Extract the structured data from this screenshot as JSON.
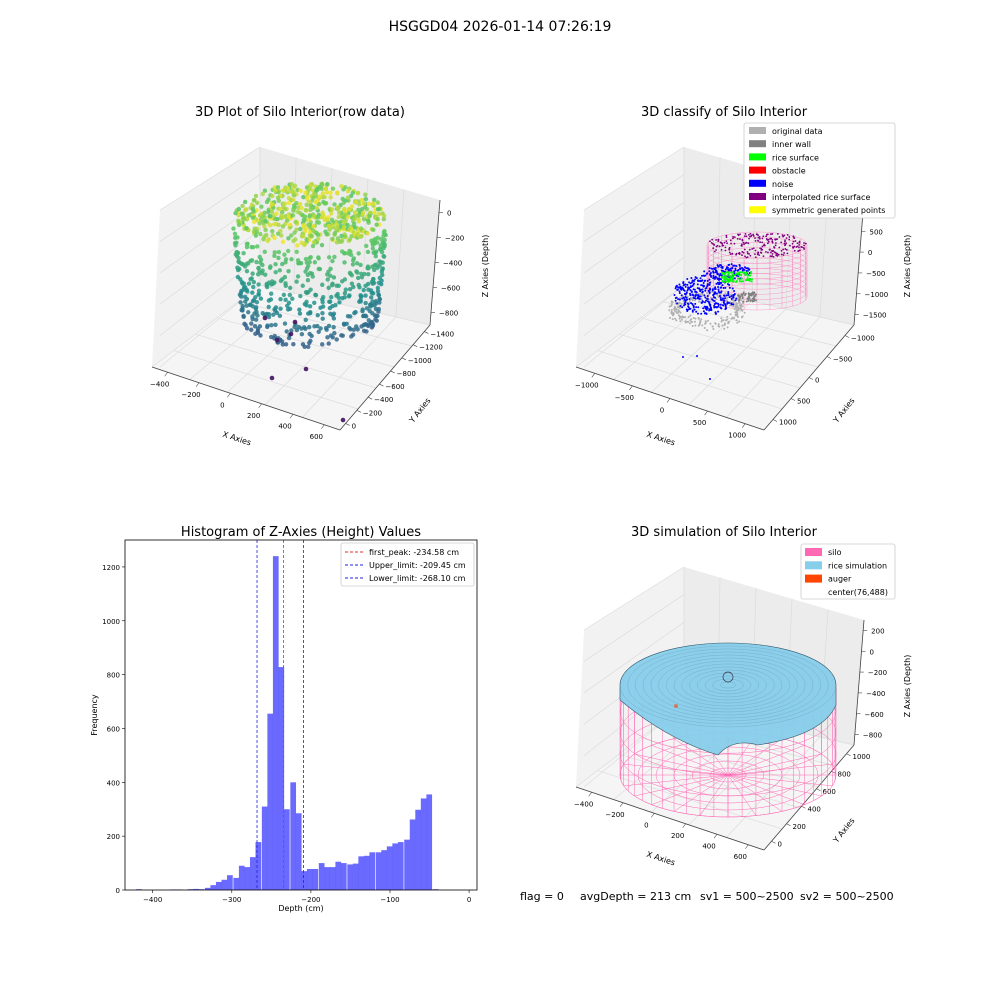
{
  "suptitle": "HSGGD04 2026-01-14 07:26:19",
  "colors": {
    "hist_bar": "#5050ff",
    "peak_line": "#e03030",
    "limit_line": "#2020dd",
    "silo": "#ff69b4",
    "rice_sim": "#87ceeb",
    "auger": "#ff4500",
    "original": "#b0b0b0",
    "inner_wall": "#808080",
    "rice_surface": "#00ff00",
    "obstacle": "#ff0000",
    "noise": "#0000ff",
    "interp": "#800080",
    "symmetric": "#ffff00"
  },
  "chart_data": [
    {
      "type": "scatter",
      "projection": "3d",
      "title": "3D Plot of Silo Interior(row data)",
      "xlabel": "X Axies",
      "ylabel": "Y Axies",
      "zlabel": "Z Axies (Depth)",
      "xticks": [
        "−400",
        "−200",
        "0",
        "200",
        "400",
        "600"
      ],
      "yticks": [
        "0",
        "−200",
        "−400",
        "−600",
        "−800",
        "−1000",
        "−1200",
        "−1400"
      ],
      "zticks": [
        "0",
        "−200",
        "−400",
        "−600",
        "−800"
      ],
      "xlim": [
        -500,
        650
      ],
      "ylim": [
        -1500,
        100
      ],
      "zlim": [
        -950,
        50
      ],
      "colormap": "viridis",
      "grid": true
    },
    {
      "type": "scatter",
      "projection": "3d",
      "title": "3D classify of Silo Interior",
      "xlabel": "X Axies",
      "ylabel": "Y Axies",
      "zlabel": "Z Axies (Depth)",
      "xticks": [
        "−1000",
        "−500",
        "0",
        "500",
        "1000"
      ],
      "yticks": [
        "1000",
        "500",
        "0",
        "−500",
        "−1000"
      ],
      "zticks": [
        "1000",
        "500",
        "0",
        "−500",
        "−1000",
        "−1500"
      ],
      "legend_position": "top-right",
      "legend": [
        {
          "label": "original data",
          "color": "#b0b0b0"
        },
        {
          "label": "inner wall",
          "color": "#808080"
        },
        {
          "label": "rice surface",
          "color": "#00ff00"
        },
        {
          "label": "obstacle",
          "color": "#ff0000"
        },
        {
          "label": "noise",
          "color": "#0000ff"
        },
        {
          "label": "interpolated rice surface",
          "color": "#800080"
        },
        {
          "label": "symmetric generated points",
          "color": "#ffff00"
        }
      ],
      "grid": true
    },
    {
      "type": "bar",
      "title": "Histogram of Z-Axies (Height) Values",
      "xlabel": "Depth (cm)",
      "ylabel": "Frequency",
      "xlim": [
        -435,
        10
      ],
      "ylim": [
        0,
        1300
      ],
      "xticks": [
        -400,
        -300,
        -200,
        -100,
        0
      ],
      "yticks": [
        0,
        200,
        400,
        600,
        800,
        1000,
        1200
      ],
      "bin_width": 7.2,
      "bins": [
        {
          "x": -421,
          "count": 3
        },
        {
          "x": -414,
          "count": 0
        },
        {
          "x": -406,
          "count": 0
        },
        {
          "x": -399,
          "count": 0
        },
        {
          "x": -392,
          "count": 0
        },
        {
          "x": -385,
          "count": 0
        },
        {
          "x": -378,
          "count": 2
        },
        {
          "x": -370,
          "count": 2
        },
        {
          "x": -363,
          "count": 0
        },
        {
          "x": -356,
          "count": 3
        },
        {
          "x": -349,
          "count": 4
        },
        {
          "x": -342,
          "count": 3
        },
        {
          "x": -334,
          "count": 8
        },
        {
          "x": -327,
          "count": 18
        },
        {
          "x": -320,
          "count": 30
        },
        {
          "x": -313,
          "count": 38
        },
        {
          "x": -306,
          "count": 55
        },
        {
          "x": -298,
          "count": 45
        },
        {
          "x": -291,
          "count": 90
        },
        {
          "x": -284,
          "count": 85
        },
        {
          "x": -277,
          "count": 122
        },
        {
          "x": -270,
          "count": 178
        },
        {
          "x": -262,
          "count": 310
        },
        {
          "x": -255,
          "count": 655
        },
        {
          "x": -248,
          "count": 1240
        },
        {
          "x": -241,
          "count": 828
        },
        {
          "x": -234,
          "count": 300
        },
        {
          "x": -226,
          "count": 400
        },
        {
          "x": -219,
          "count": 285
        },
        {
          "x": -212,
          "count": 70
        },
        {
          "x": -205,
          "count": 78
        },
        {
          "x": -198,
          "count": 78
        },
        {
          "x": -190,
          "count": 100
        },
        {
          "x": -183,
          "count": 85
        },
        {
          "x": -176,
          "count": 85
        },
        {
          "x": -169,
          "count": 105
        },
        {
          "x": -162,
          "count": 100
        },
        {
          "x": -154,
          "count": 95
        },
        {
          "x": -147,
          "count": 98
        },
        {
          "x": -140,
          "count": 125
        },
        {
          "x": -133,
          "count": 127
        },
        {
          "x": -126,
          "count": 140
        },
        {
          "x": -118,
          "count": 140
        },
        {
          "x": -111,
          "count": 148
        },
        {
          "x": -104,
          "count": 162
        },
        {
          "x": -97,
          "count": 173
        },
        {
          "x": -90,
          "count": 178
        },
        {
          "x": -82,
          "count": 187
        },
        {
          "x": -75,
          "count": 262
        },
        {
          "x": -68,
          "count": 298
        },
        {
          "x": -61,
          "count": 340
        },
        {
          "x": -54,
          "count": 355
        },
        {
          "x": -46,
          "count": 3
        }
      ],
      "shifted_tail_note": "",
      "vlines": [
        {
          "label": "first_peak: -234.58 cm",
          "x": -234.58,
          "color": "#e03030"
        },
        {
          "label": "Upper_limit: -209.45 cm",
          "x": -209.45,
          "color": "#2020dd"
        },
        {
          "label": "Lower_limit: -268.10 cm",
          "x": -268.1,
          "color": "#2020dd"
        }
      ],
      "legend_position": "top-right",
      "grid": false
    },
    {
      "type": "surface",
      "projection": "3d",
      "title": "3D simulation of Silo Interior",
      "xlabel": "X Axies",
      "ylabel": "Y Axies",
      "zlabel": "Z Axies (Depth)",
      "xticks": [
        "−400",
        "−200",
        "0",
        "200",
        "400",
        "600"
      ],
      "yticks": [
        "0",
        "200",
        "400",
        "600",
        "800",
        "1000"
      ],
      "zticks": [
        "200",
        "0",
        "−200",
        "−400",
        "−600",
        "−800"
      ],
      "legend_position": "top-right",
      "legend": [
        {
          "label": "silo",
          "color": "#ff69b4"
        },
        {
          "label": "rice simulation",
          "color": "#87ceeb"
        },
        {
          "label": "auger",
          "color": "#ff4500"
        },
        {
          "label": "center(76,488)",
          "color": ""
        }
      ],
      "grid": true
    }
  ],
  "footer": {
    "flag": "flag = 0",
    "avg_depth": "avgDepth = 213 cm",
    "sv1": "sv1 = 500~2500",
    "sv2": "sv2 = 500~2500"
  }
}
